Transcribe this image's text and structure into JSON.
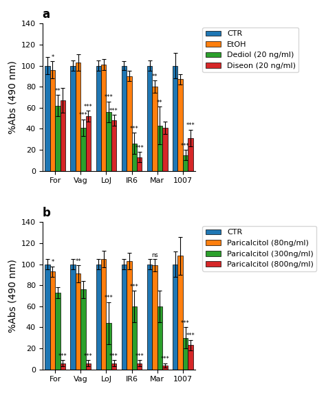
{
  "chart_data": [
    {
      "type": "bar",
      "title": "a",
      "categories": [
        "For",
        "Vag",
        "LoJ",
        "IR6",
        "Mar",
        "1007"
      ],
      "ylabel": "%Abs (490 nm)",
      "ylim": [
        0,
        140
      ],
      "yticks": [
        0,
        20,
        40,
        60,
        80,
        100,
        120,
        140
      ],
      "legend": "upper left",
      "series": [
        {
          "name": "CTR",
          "values": [
            100,
            100,
            100,
            100,
            100,
            100
          ],
          "errors": [
            8,
            5,
            5,
            4,
            5,
            12
          ],
          "annotations": [
            null,
            null,
            null,
            null,
            null,
            null
          ]
        },
        {
          "name": "EtOH",
          "values": [
            96,
            103,
            101,
            90,
            80,
            87
          ],
          "errors": [
            8,
            8,
            5,
            5,
            6,
            5
          ],
          "annotations": [
            "*",
            null,
            null,
            null,
            "**",
            null
          ]
        },
        {
          "name": "Dediol (20 ng/ml)",
          "values": [
            62,
            41,
            56,
            26,
            43,
            15
          ],
          "errors": [
            10,
            8,
            10,
            10,
            18,
            5
          ],
          "annotations": [
            "**",
            "***",
            "***",
            "***",
            "**",
            "***"
          ]
        },
        {
          "name": "Diseon (20 ng/ml)",
          "values": [
            67,
            52,
            48,
            13,
            41,
            31
          ],
          "errors": [
            12,
            5,
            5,
            5,
            6,
            8
          ],
          "annotations": [
            null,
            "***",
            "***",
            "***",
            null,
            "***"
          ]
        }
      ]
    },
    {
      "type": "bar",
      "title": "b",
      "categories": [
        "For",
        "Vag",
        "LoJ",
        "IR6",
        "Mar",
        "1007"
      ],
      "ylabel": "%Abs (490 nm)",
      "ylim": [
        0,
        140
      ],
      "yticks": [
        0,
        20,
        40,
        60,
        80,
        100,
        120,
        140
      ],
      "legend": "upper left",
      "series": [
        {
          "name": "CTR",
          "values": [
            100,
            100,
            100,
            100,
            100,
            100
          ],
          "errors": [
            5,
            5,
            5,
            5,
            5,
            12
          ],
          "annotations": [
            null,
            null,
            null,
            null,
            null,
            null
          ]
        },
        {
          "name": "Paricalcitol (80ng/ml)",
          "values": [
            93,
            91,
            105,
            103,
            99,
            108
          ],
          "errors": [
            5,
            8,
            8,
            8,
            6,
            18
          ],
          "annotations": [
            "*",
            "**",
            null,
            null,
            "ns",
            null
          ]
        },
        {
          "name": "Paricalcitol (300ng/ml)",
          "values": [
            73,
            76,
            44,
            60,
            60,
            30
          ],
          "errors": [
            5,
            8,
            20,
            15,
            15,
            10
          ],
          "annotations": [
            null,
            null,
            "***",
            "***",
            null,
            "***"
          ]
        },
        {
          "name": "Paricalcitol (800ng/ml)",
          "values": [
            6,
            6,
            6,
            6,
            4,
            23
          ],
          "errors": [
            3,
            3,
            3,
            3,
            2,
            5
          ],
          "annotations": [
            "***",
            "***",
            "***",
            "***",
            "***",
            "***"
          ]
        }
      ]
    }
  ]
}
